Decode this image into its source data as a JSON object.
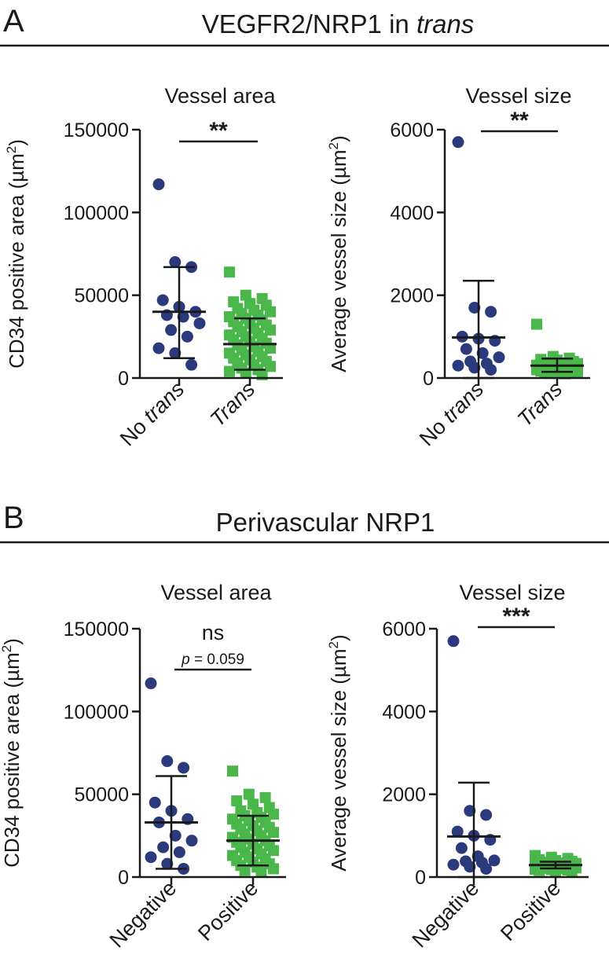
{
  "colors": {
    "blue": "#2b3a7c",
    "green": "#4ab74a",
    "line": "#1a1a1a"
  },
  "sections": [
    {
      "letter": "A",
      "title_pre": "VEGFR2/NRP1 in ",
      "title_em": "trans"
    },
    {
      "letter": "B",
      "title_pre": "Perivascular NRP1",
      "title_em": ""
    }
  ],
  "chart_data": [
    {
      "type": "scatter",
      "panel": "A",
      "title": "Vessel area",
      "ylabel_pre": "CD34 positive area (µm",
      "ylabel_sup": "2",
      "ylabel_post": ")",
      "ylim": [
        0,
        150000
      ],
      "yticks": [
        0,
        50000,
        100000,
        150000
      ],
      "ytick_labels": [
        "0",
        "50000",
        "100000",
        "150000"
      ],
      "categories": [
        {
          "pre": "No ",
          "em": "trans",
          "post": ""
        },
        {
          "pre": "",
          "em": "Trans",
          "post": ""
        }
      ],
      "significance": "**",
      "significance_note": "",
      "series": [
        {
          "name": "No trans",
          "marker": "circle",
          "color": "#2b3a7c",
          "values": [
            117000,
            70000,
            67000,
            47000,
            43000,
            40000,
            38000,
            37000,
            33000,
            29000,
            25000,
            18000,
            15000,
            8000
          ],
          "mean": 40000,
          "sd_low": 12000,
          "sd_high": 67000
        },
        {
          "name": "Trans",
          "marker": "square",
          "color": "#4ab74a",
          "values": [
            64000,
            50000,
            48000,
            46000,
            45000,
            44000,
            42000,
            41000,
            40000,
            39000,
            38000,
            37000,
            36000,
            35000,
            34000,
            33000,
            32000,
            31000,
            30000,
            29000,
            28000,
            27000,
            26000,
            25000,
            24000,
            23000,
            22000,
            21000,
            20000,
            19000,
            18000,
            17000,
            16000,
            15000,
            14000,
            13000,
            12000,
            11000,
            10000,
            9000,
            8000,
            7000,
            6000,
            5000,
            4000,
            3000,
            2000
          ],
          "mean": 20500,
          "sd_low": 5000,
          "sd_high": 36000
        }
      ]
    },
    {
      "type": "scatter",
      "panel": "A",
      "title": "Vessel size",
      "ylabel_pre": "Average vessel size (µm",
      "ylabel_sup": "2",
      "ylabel_post": ")",
      "ylim": [
        0,
        6000
      ],
      "yticks": [
        0,
        2000,
        4000,
        6000
      ],
      "ytick_labels": [
        "0",
        "2000",
        "4000",
        "6000"
      ],
      "categories": [
        {
          "pre": "No ",
          "em": "trans",
          "post": ""
        },
        {
          "pre": "",
          "em": "Trans",
          "post": ""
        }
      ],
      "significance": "**",
      "significance_note": "",
      "series": [
        {
          "name": "No trans",
          "marker": "circle",
          "color": "#2b3a7c",
          "values": [
            5700,
            1700,
            1600,
            1000,
            950,
            900,
            700,
            600,
            500,
            400,
            350,
            300,
            250,
            200
          ],
          "mean": 980,
          "sd_low": 0,
          "sd_high": 2350
        },
        {
          "name": "Trans",
          "marker": "square",
          "color": "#4ab74a",
          "values": [
            1300,
            520,
            480,
            450,
            430,
            400,
            380,
            360,
            350,
            340,
            320,
            310,
            300,
            290,
            280,
            270,
            260,
            250,
            240,
            230,
            220,
            210,
            200,
            190,
            180,
            170,
            160,
            150,
            140,
            130,
            120,
            110,
            100
          ],
          "mean": 300,
          "sd_low": 150,
          "sd_high": 470
        }
      ]
    },
    {
      "type": "scatter",
      "panel": "B",
      "title": "Vessel area",
      "ylabel_pre": "CD34 positive area (µm",
      "ylabel_sup": "2",
      "ylabel_post": ")",
      "ylim": [
        0,
        150000
      ],
      "yticks": [
        0,
        50000,
        100000,
        150000
      ],
      "ytick_labels": [
        "0",
        "50000",
        "100000",
        "150000"
      ],
      "categories": [
        {
          "pre": "Negative",
          "em": "",
          "post": ""
        },
        {
          "pre": "Positive",
          "em": "",
          "post": ""
        }
      ],
      "significance": "ns",
      "significance_note": "p = 0.059",
      "series": [
        {
          "name": "Negative",
          "marker": "circle",
          "color": "#2b3a7c",
          "values": [
            117000,
            70000,
            66000,
            45000,
            40000,
            35000,
            33000,
            25000,
            22000,
            18000,
            15000,
            12000,
            8000,
            5000
          ],
          "mean": 33000,
          "sd_low": 5000,
          "sd_high": 61000
        },
        {
          "name": "Positive",
          "marker": "square",
          "color": "#4ab74a",
          "values": [
            64000,
            50000,
            48000,
            46000,
            44000,
            42000,
            40000,
            39000,
            38000,
            37000,
            36000,
            35000,
            34000,
            33000,
            32000,
            31000,
            30000,
            29000,
            28000,
            27000,
            26000,
            25000,
            24000,
            23000,
            22000,
            21000,
            20000,
            19000,
            18000,
            17000,
            16000,
            15000,
            14000,
            13000,
            12000,
            11000,
            10000,
            9000,
            8000,
            7000,
            6000,
            5000,
            4000,
            3000
          ],
          "mean": 22000,
          "sd_low": 7000,
          "sd_high": 37000
        }
      ]
    },
    {
      "type": "scatter",
      "panel": "B",
      "title": "Vessel size",
      "ylabel_pre": "Average vessel size (µm",
      "ylabel_sup": "2",
      "ylabel_post": ")",
      "ylim": [
        0,
        6000
      ],
      "yticks": [
        0,
        2000,
        4000,
        6000
      ],
      "ytick_labels": [
        "0",
        "2000",
        "4000",
        "6000"
      ],
      "categories": [
        {
          "pre": "Negative",
          "em": "",
          "post": ""
        },
        {
          "pre": "Positive",
          "em": "",
          "post": ""
        }
      ],
      "significance": "***",
      "significance_note": "",
      "series": [
        {
          "name": "Negative",
          "marker": "circle",
          "color": "#2b3a7c",
          "values": [
            5700,
            1600,
            1500,
            1100,
            1000,
            900,
            700,
            500,
            400,
            380,
            350,
            300,
            250,
            200
          ],
          "mean": 980,
          "sd_low": 0,
          "sd_high": 2280
        },
        {
          "name": "Positive",
          "marker": "square",
          "color": "#4ab74a",
          "values": [
            520,
            480,
            450,
            420,
            400,
            380,
            360,
            340,
            330,
            320,
            310,
            300,
            290,
            280,
            270,
            260,
            250,
            240,
            230,
            220,
            210,
            200,
            190,
            180,
            170,
            160,
            150,
            140
          ],
          "mean": 290,
          "sd_low": 210,
          "sd_high": 370
        }
      ]
    }
  ]
}
